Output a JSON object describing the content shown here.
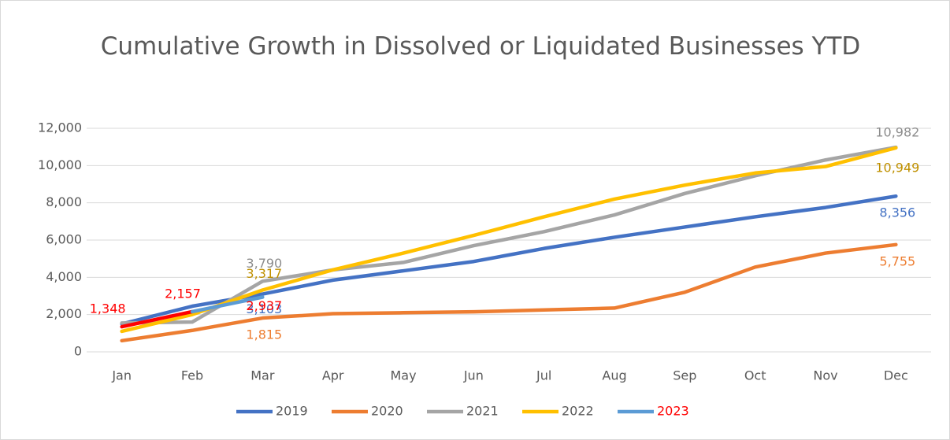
{
  "chart_data": {
    "type": "line",
    "title": "Cumulative Growth in Dissolved or Liquidated Businesses YTD",
    "categories": [
      "Jan",
      "Feb",
      "Mar",
      "Apr",
      "May",
      "Jun",
      "Jul",
      "Aug",
      "Sep",
      "Oct",
      "Nov",
      "Dec"
    ],
    "ylim": [
      0,
      12000
    ],
    "yticks": [
      0,
      {
        "value": 2000,
        "label": "2,000"
      },
      {
        "value": 4000,
        "label": "4,000"
      },
      {
        "value": 6000,
        "label": "6,000"
      },
      {
        "value": 8000,
        "label": "8,000"
      },
      {
        "value": 10000,
        "label": "10,000"
      },
      {
        "value": 12000,
        "label": "12,000"
      }
    ],
    "grid": true,
    "legend": "bottom",
    "series": [
      {
        "name": "2019",
        "color": "#4472c4",
        "label_color": "#4472c4",
        "values": [
          1500,
          2450,
          3103,
          3850,
          4350,
          4850,
          5550,
          6150,
          6700,
          7250,
          7750,
          8356
        ],
        "value_labels": [
          null,
          null,
          "3,103",
          null,
          null,
          null,
          null,
          null,
          null,
          null,
          null,
          "8,356"
        ]
      },
      {
        "name": "2020",
        "color": "#ed7d31",
        "label_color": "#ed7d31",
        "values": [
          600,
          1150,
          1815,
          2050,
          2100,
          2150,
          2250,
          2350,
          3200,
          4550,
          5300,
          5755
        ],
        "value_labels": [
          null,
          null,
          "1,815",
          null,
          null,
          null,
          null,
          null,
          null,
          null,
          null,
          "5,755"
        ]
      },
      {
        "name": "2021",
        "color": "#a5a5a5",
        "label_color": "#8c8c8c",
        "values": [
          1550,
          1600,
          3790,
          4400,
          4800,
          5700,
          6450,
          7350,
          8500,
          9450,
          10300,
          10982
        ],
        "value_labels": [
          null,
          null,
          "3,790",
          null,
          null,
          null,
          null,
          null,
          null,
          null,
          null,
          "10,982"
        ]
      },
      {
        "name": "2022",
        "color": "#ffc000",
        "label_color": "#bf9000",
        "values": [
          1100,
          2000,
          3317,
          4400,
          5300,
          6250,
          7250,
          8200,
          8950,
          9600,
          9950,
          10949
        ],
        "value_labels": [
          null,
          null,
          "3,317",
          null,
          null,
          null,
          null,
          null,
          null,
          null,
          null,
          "10,949"
        ]
      },
      {
        "name": "2023",
        "color": "#5b9bd5",
        "label_color": "#ff0000",
        "segment_colors": [
          "#ff0000",
          "#5b9bd5"
        ],
        "values": [
          1348,
          2157,
          2937,
          null,
          null,
          null,
          null,
          null,
          null,
          null,
          null,
          null
        ],
        "value_labels": [
          "1,348",
          "2,157",
          "2,937",
          null,
          null,
          null,
          null,
          null,
          null,
          null,
          null,
          null
        ]
      }
    ]
  }
}
